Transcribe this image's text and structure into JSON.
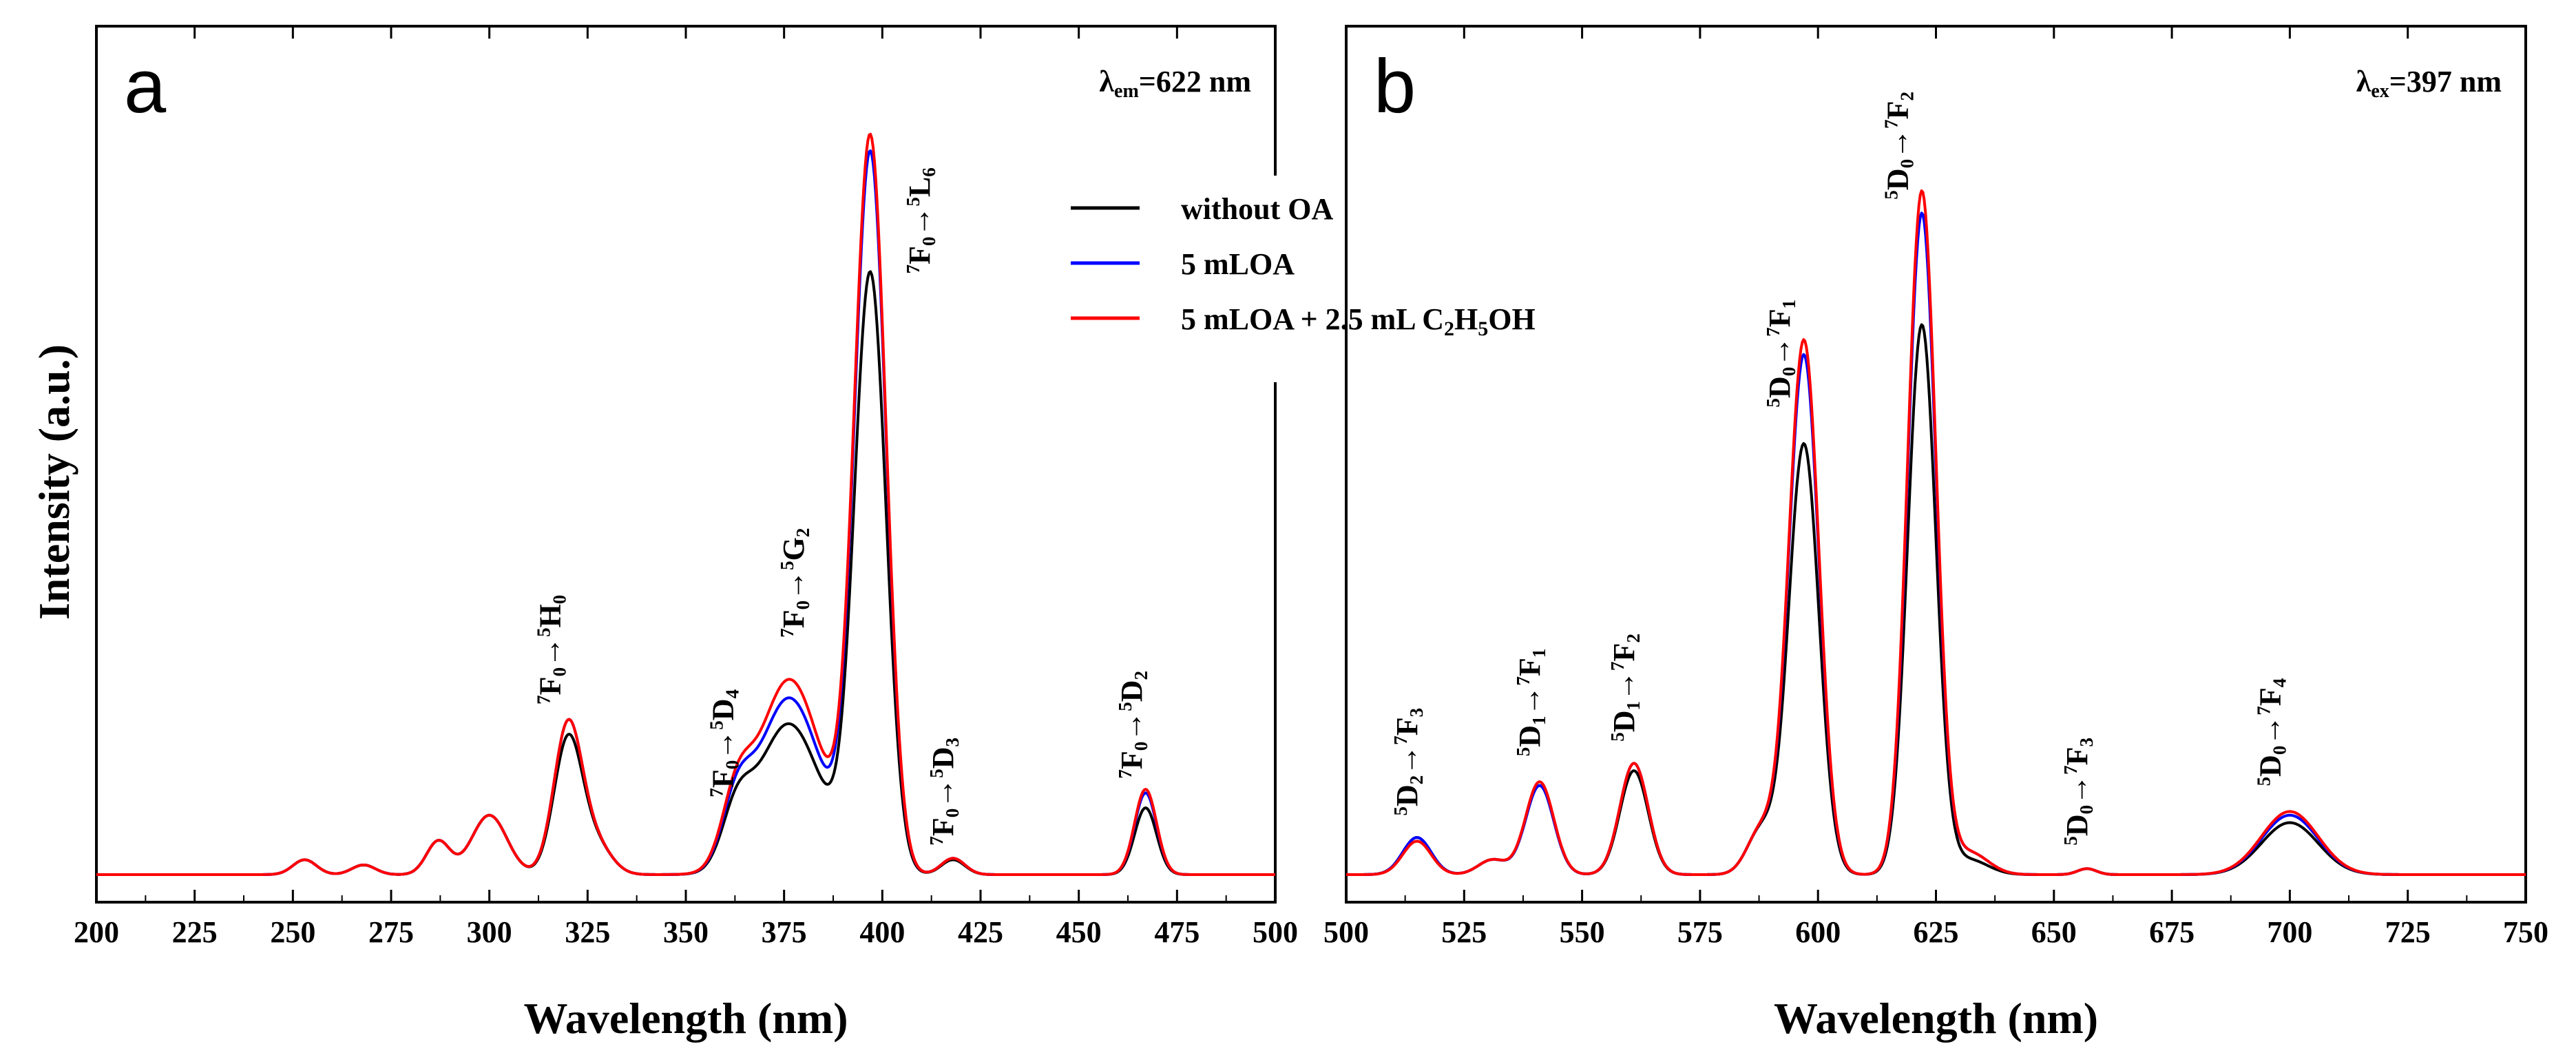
{
  "ylabel": "Intensity (a.u.)",
  "legend": {
    "entries": [
      {
        "label": "without OA",
        "color": "#000000"
      },
      {
        "label": "5 mLOA",
        "color": "#0000ff"
      },
      {
        "label": "5 mLOA + 2.5 mL C2H5OH",
        "color": "#ff0000"
      }
    ]
  },
  "chart_data": [
    {
      "panel": "a",
      "type": "line",
      "title_note": "λem=622 nm",
      "xlabel": "Wavelength (nm)",
      "ylabel": "Intensity (a.u.)",
      "xlim": [
        200,
        500
      ],
      "ylim": [
        0,
        1.05
      ],
      "xticks": [
        200,
        225,
        250,
        275,
        300,
        325,
        350,
        375,
        400,
        425,
        450,
        475,
        500
      ],
      "series": [
        {
          "name": "without OA",
          "color": "#000000",
          "peaks": [
            [
              253,
              0.02,
              3
            ],
            [
              268,
              0.013,
              3
            ],
            [
              287,
              0.045,
              3
            ],
            [
              300,
              0.08,
              4.5
            ],
            [
              320,
              0.18,
              3.6
            ],
            [
              327,
              0.04,
              4
            ],
            [
              363,
              0.075,
              3.8
            ],
            [
              372,
              0.02,
              5
            ],
            [
              377,
              0.19,
              8
            ],
            [
              392,
              0.015,
              3
            ],
            [
              397,
              0.8,
              4
            ],
            [
              418,
              0.02,
              3
            ],
            [
              467,
              0.09,
              2.8
            ]
          ]
        },
        {
          "name": "5 mLOA",
          "color": "#0000ff",
          "peaks": [
            [
              253,
              0.02,
              3
            ],
            [
              268,
              0.013,
              3
            ],
            [
              287,
              0.045,
              3
            ],
            [
              300,
              0.08,
              4.5
            ],
            [
              320,
              0.2,
              3.6
            ],
            [
              327,
              0.04,
              4
            ],
            [
              363,
              0.085,
              3.8
            ],
            [
              372,
              0.02,
              5
            ],
            [
              377,
              0.225,
              8
            ],
            [
              392,
              0.02,
              3
            ],
            [
              397,
              0.96,
              4
            ],
            [
              418,
              0.022,
              3
            ],
            [
              467,
              0.11,
              2.8
            ]
          ]
        },
        {
          "name": "5 mLOA + 2.5 mL C2H5OH",
          "color": "#ff0000",
          "peaks": [
            [
              253,
              0.02,
              3
            ],
            [
              268,
              0.013,
              3
            ],
            [
              287,
              0.045,
              3
            ],
            [
              300,
              0.08,
              4.5
            ],
            [
              320,
              0.2,
              3.6
            ],
            [
              327,
              0.04,
              4
            ],
            [
              363,
              0.09,
              3.8
            ],
            [
              372,
              0.02,
              5
            ],
            [
              377,
              0.25,
              8
            ],
            [
              392,
              0.025,
              3
            ],
            [
              397,
              0.98,
              4
            ],
            [
              418,
              0.022,
              3
            ],
            [
              467,
              0.115,
              2.8
            ]
          ]
        }
      ],
      "annotations": [
        {
          "x": 318,
          "y": 0.22,
          "from": "7F0",
          "to": "5H0"
        },
        {
          "x": 362,
          "y": 0.095,
          "from": "7F0",
          "to": "5D4"
        },
        {
          "x": 380,
          "y": 0.31,
          "from": "7F0",
          "to": "5G2"
        },
        {
          "x": 412,
          "y": 0.8,
          "from": "7F0",
          "to": "5L6"
        },
        {
          "x": 418,
          "y": 0.03,
          "from": "7F0",
          "to": "5D3"
        },
        {
          "x": 466,
          "y": 0.12,
          "from": "7F0",
          "to": "5D2"
        }
      ]
    },
    {
      "panel": "b",
      "type": "line",
      "title_note": "λex=397 nm",
      "xlabel": "Wavelength (nm)",
      "ylabel": "Intensity (a.u.)",
      "xlim": [
        500,
        750
      ],
      "ylim": [
        0,
        1.05
      ],
      "xticks": [
        500,
        525,
        550,
        575,
        600,
        625,
        650,
        675,
        700,
        725,
        750
      ],
      "series": [
        {
          "name": "without OA",
          "color": "#000000",
          "peaks": [
            [
              515,
              0.05,
              3
            ],
            [
              531,
              0.02,
              3
            ],
            [
              541,
              0.12,
              3
            ],
            [
              561,
              0.14,
              3
            ],
            [
              588,
              0.06,
              3
            ],
            [
              597,
              0.58,
              3.2
            ],
            [
              622,
              0.74,
              3
            ],
            [
              632,
              0.02,
              4
            ],
            [
              657,
              0.008,
              2
            ],
            [
              700,
              0.07,
              6
            ]
          ]
        },
        {
          "name": "5 mLOA",
          "color": "#0000ff",
          "peaks": [
            [
              515,
              0.05,
              3
            ],
            [
              531,
              0.02,
              3
            ],
            [
              541,
              0.12,
              3
            ],
            [
              561,
              0.15,
              3
            ],
            [
              588,
              0.06,
              3
            ],
            [
              597,
              0.7,
              3.2
            ],
            [
              622,
              0.89,
              3
            ],
            [
              632,
              0.03,
              4
            ],
            [
              657,
              0.008,
              2
            ],
            [
              700,
              0.08,
              6
            ]
          ]
        },
        {
          "name": "5 mLOA + 2.5 mL C2H5OH",
          "color": "#ff0000",
          "peaks": [
            [
              515,
              0.045,
              3
            ],
            [
              531,
              0.02,
              3
            ],
            [
              541,
              0.125,
              3
            ],
            [
              561,
              0.15,
              3
            ],
            [
              588,
              0.06,
              3
            ],
            [
              597,
              0.72,
              3.2
            ],
            [
              622,
              0.92,
              3
            ],
            [
              632,
              0.03,
              4
            ],
            [
              657,
              0.008,
              2
            ],
            [
              700,
              0.085,
              6
            ]
          ]
        }
      ],
      "annotations": [
        {
          "x": 515,
          "y": 0.07,
          "from": "5D2",
          "to": "7F3"
        },
        {
          "x": 541,
          "y": 0.15,
          "from": "5D1",
          "to": "7F1"
        },
        {
          "x": 561,
          "y": 0.17,
          "from": "5D1",
          "to": "7F2"
        },
        {
          "x": 594,
          "y": 0.62,
          "from": "5D0",
          "to": "7F1"
        },
        {
          "x": 619,
          "y": 0.9,
          "from": "5D0",
          "to": "7F2"
        },
        {
          "x": 657,
          "y": 0.03,
          "from": "5D0",
          "to": "7F3"
        },
        {
          "x": 698,
          "y": 0.11,
          "from": "5D0",
          "to": "7F4"
        }
      ]
    }
  ]
}
